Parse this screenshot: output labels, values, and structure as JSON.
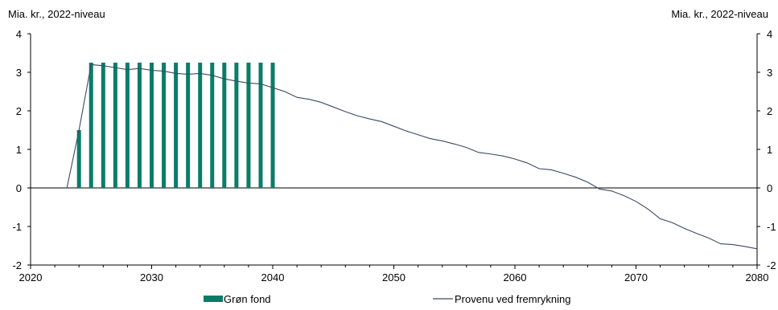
{
  "chart_data": {
    "type": "bar",
    "left_axis_unit": "Mia. kr., 2022-niveau",
    "right_axis_unit": "Mia. kr., 2022-niveau",
    "xlim": [
      2020,
      2080
    ],
    "ylim": [
      -2,
      4
    ],
    "x_ticks": [
      "2020",
      "2030",
      "2040",
      "2050",
      "2060",
      "2070",
      "2080"
    ],
    "y_ticks": [
      "-2",
      "-1",
      "0",
      "1",
      "2",
      "3",
      "4"
    ],
    "grid": false,
    "legend_position": "bottom",
    "series": [
      {
        "name": "Grøn fond",
        "type": "bar",
        "color": "#0a7d68",
        "x": [
          2024,
          2025,
          2026,
          2027,
          2028,
          2029,
          2030,
          2031,
          2032,
          2033,
          2034,
          2035,
          2036,
          2037,
          2038,
          2039,
          2040
        ],
        "values": [
          1.5,
          3.25,
          3.25,
          3.25,
          3.25,
          3.25,
          3.25,
          3.25,
          3.25,
          3.25,
          3.25,
          3.25,
          3.25,
          3.25,
          3.25,
          3.25,
          3.25
        ]
      },
      {
        "name": "Provenu ved fremrykning",
        "type": "line",
        "color": "#3a4a66",
        "x": [
          2023,
          2024,
          2025,
          2026,
          2027,
          2028,
          2029,
          2030,
          2031,
          2032,
          2033,
          2034,
          2035,
          2036,
          2037,
          2038,
          2039,
          2040,
          2041,
          2042,
          2043,
          2044,
          2045,
          2046,
          2047,
          2048,
          2049,
          2050,
          2051,
          2052,
          2053,
          2054,
          2055,
          2056,
          2057,
          2058,
          2059,
          2060,
          2061,
          2062,
          2063,
          2064,
          2065,
          2066,
          2067,
          2068,
          2069,
          2070,
          2071,
          2072,
          2073,
          2074,
          2075,
          2076,
          2077,
          2078,
          2079,
          2080
        ],
        "values": [
          0.0,
          1.5,
          3.2,
          3.17,
          3.12,
          3.07,
          3.1,
          3.05,
          3.03,
          2.97,
          2.95,
          2.97,
          2.92,
          2.83,
          2.77,
          2.72,
          2.7,
          2.6,
          2.5,
          2.35,
          2.3,
          2.22,
          2.1,
          1.98,
          1.87,
          1.79,
          1.72,
          1.6,
          1.48,
          1.38,
          1.28,
          1.22,
          1.14,
          1.05,
          0.92,
          0.88,
          0.83,
          0.75,
          0.65,
          0.5,
          0.47,
          0.38,
          0.28,
          0.15,
          -0.03,
          -0.08,
          -0.2,
          -0.35,
          -0.55,
          -0.8,
          -0.9,
          -1.05,
          -1.18,
          -1.3,
          -1.45,
          -1.47,
          -1.52,
          -1.58
        ]
      }
    ]
  }
}
